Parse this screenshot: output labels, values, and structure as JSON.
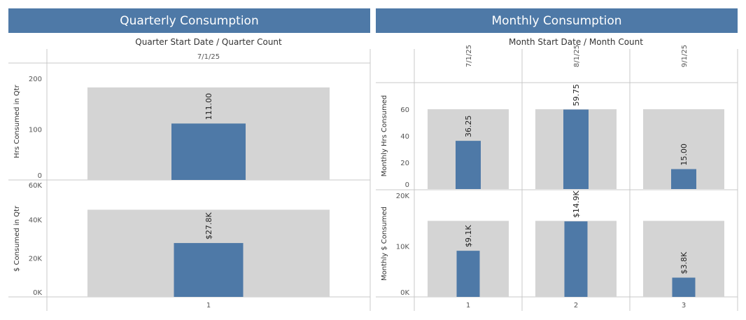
{
  "quarterly": {
    "title": "Quarterly Consumption",
    "header": "Quarter Start Date  /  Quarter Count"
  },
  "monthly": {
    "title": "Monthly Consumption",
    "header": "Month Start Date  /  Month Count"
  },
  "colors": {
    "bar": "#4e79a7",
    "reference_band": "#d4d4d4",
    "gridline": "#c8c8c8",
    "title_bg": "#4e79a7"
  },
  "chart_data": [
    {
      "type": "bar",
      "id": "quarter-hrs",
      "column_dates": [
        "7/1/25"
      ],
      "categories": [
        "1"
      ],
      "values": [
        111.0
      ],
      "value_labels": [
        "111.00"
      ],
      "reference_band": 182,
      "ylabel": "Hrs Consumed in Qtr",
      "ylim": [
        0,
        230
      ],
      "yticks": [
        0,
        100,
        200
      ],
      "ytick_labels": [
        "0",
        "100",
        "200"
      ]
    },
    {
      "type": "bar",
      "id": "quarter-dollars",
      "categories": [
        "1"
      ],
      "values": [
        27800
      ],
      "value_labels": [
        "$27.8K"
      ],
      "reference_band": 45000,
      "ylabel": "$ Consumed in Qtr",
      "ylim": [
        0,
        60000
      ],
      "yticks": [
        0,
        20000,
        40000,
        60000
      ],
      "ytick_labels": [
        "0K",
        "20K",
        "40K",
        "60K"
      ]
    },
    {
      "type": "bar",
      "id": "month-hrs",
      "column_dates": [
        "7/1/25",
        "8/1/25",
        "9/1/25"
      ],
      "categories": [
        "1",
        "2",
        "3"
      ],
      "values": [
        36.25,
        59.75,
        15.0
      ],
      "value_labels": [
        "36.25",
        "59.75",
        "15.00"
      ],
      "reference_band": 60,
      "ylabel": "Monthly Hrs Consumed",
      "ylim": [
        0,
        80
      ],
      "yticks": [
        0,
        20,
        40,
        60
      ],
      "ytick_labels": [
        "0",
        "20",
        "40",
        "60"
      ]
    },
    {
      "type": "bar",
      "id": "month-dollars",
      "categories": [
        "1",
        "2",
        "3"
      ],
      "values": [
        9100,
        14900,
        3800
      ],
      "value_labels": [
        "$9.1K",
        "$14.9K",
        "$3.8K"
      ],
      "reference_band": 15000,
      "ylabel": "Monthly $ Consumed",
      "ylim": [
        0,
        21000
      ],
      "yticks": [
        0,
        10000,
        20000
      ],
      "ytick_labels": [
        "0K",
        "10K",
        "20K"
      ]
    }
  ]
}
